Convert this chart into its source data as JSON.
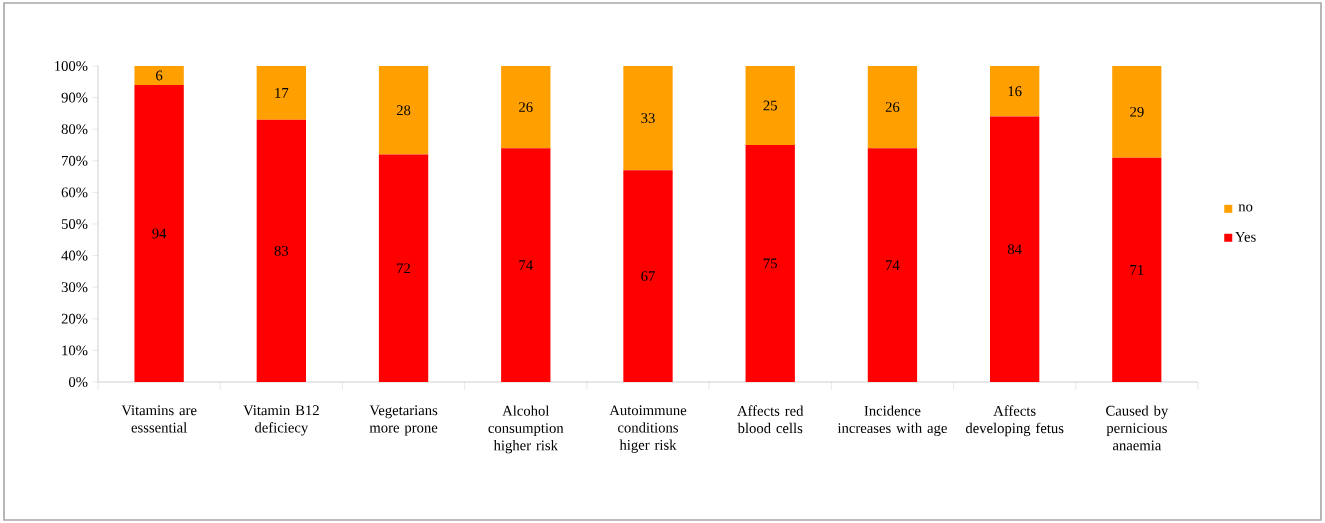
{
  "chart_data": {
    "type": "bar",
    "stacked": true,
    "categories": [
      "Vitamins are esssential",
      "Vitamin B12 deficiecy",
      "Vegetarians more prone",
      "Alcohol consumption higher risk",
      "Autoimmune conditions higer risk",
      "Affects red blood cells",
      "Incidence increases with age",
      "Affects developing fetus",
      "Caused by pernicious anaemia"
    ],
    "series": [
      {
        "name": "Yes",
        "color": "#ff0000",
        "values": [
          94,
          83,
          72,
          74,
          67,
          75,
          74,
          84,
          71
        ]
      },
      {
        "name": "no",
        "color": "#ffa000",
        "values": [
          6,
          17,
          28,
          26,
          33,
          25,
          26,
          16,
          29
        ]
      }
    ],
    "ylim": [
      0,
      100
    ],
    "yticks": [
      {
        "value": 0,
        "label": "0%"
      },
      {
        "value": 10,
        "label": "10%"
      },
      {
        "value": 20,
        "label": "20%"
      },
      {
        "value": 30,
        "label": "30%"
      },
      {
        "value": 40,
        "label": "40%"
      },
      {
        "value": 50,
        "label": "50%"
      },
      {
        "value": 60,
        "label": "60%"
      },
      {
        "value": 70,
        "label": "70%"
      },
      {
        "value": 80,
        "label": "80%"
      },
      {
        "value": 90,
        "label": "90%"
      },
      {
        "value": 100,
        "label": "100%"
      }
    ],
    "data_labels": true,
    "legend": "right",
    "grid": false
  }
}
